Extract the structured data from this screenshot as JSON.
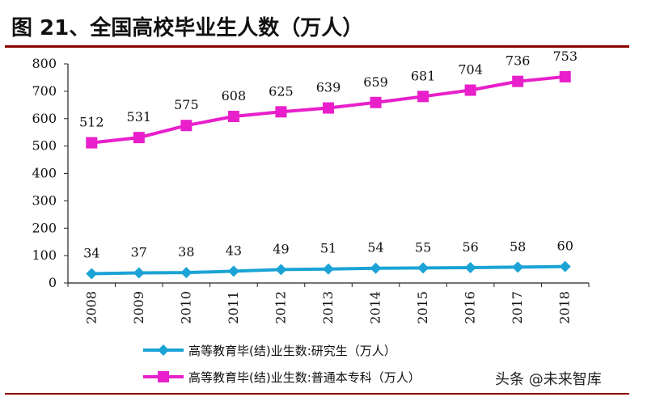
{
  "title": "图 21、全国高校毕业生人数（万人）",
  "watermark": "头条 @未来智库",
  "chart_data": {
    "type": "line",
    "categories": [
      "2008",
      "2009",
      "2010",
      "2011",
      "2012",
      "2013",
      "2014",
      "2015",
      "2016",
      "2017",
      "2018"
    ],
    "ylim": [
      0,
      800
    ],
    "yticks": [
      0,
      100,
      200,
      300,
      400,
      500,
      600,
      700,
      800
    ],
    "grid": false,
    "legend_position": "bottom",
    "series": [
      {
        "name": "高等教育毕(结)业生数:研究生（万人）",
        "color": "#1BA3D6",
        "marker": "diamond",
        "values": [
          34,
          37,
          38,
          43,
          49,
          51,
          54,
          55,
          56,
          58,
          60
        ]
      },
      {
        "name": "高等教育毕(结)业生数:普通本专科（万人）",
        "color": "#E81FCB",
        "marker": "square",
        "values": [
          512,
          531,
          575,
          608,
          625,
          639,
          659,
          681,
          704,
          736,
          753
        ]
      }
    ]
  }
}
